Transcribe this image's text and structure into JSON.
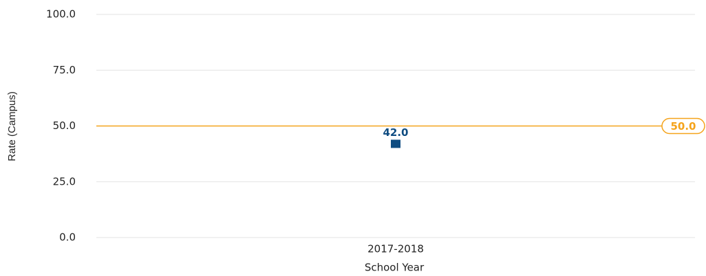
{
  "chart_data": {
    "type": "line",
    "x_label": "School Year",
    "y_label": "Rate (Campus)",
    "categories": [
      "2017-2018"
    ],
    "series": [
      {
        "name": "Campus",
        "color": "#0f4c81",
        "values": [
          42
        ],
        "value_labels": [
          "42.0"
        ]
      }
    ],
    "ylim": [
      0,
      100
    ],
    "yticks": [
      {
        "value": 0,
        "label": "0.0"
      },
      {
        "value": 25,
        "label": "25.0"
      },
      {
        "value": 50,
        "label": "50.0"
      },
      {
        "value": 75,
        "label": "75.0"
      },
      {
        "value": 100,
        "label": "100.0"
      }
    ],
    "grid": true,
    "reference_line": {
      "value": 50,
      "label": "50.0",
      "color": "#f5a31a"
    }
  }
}
